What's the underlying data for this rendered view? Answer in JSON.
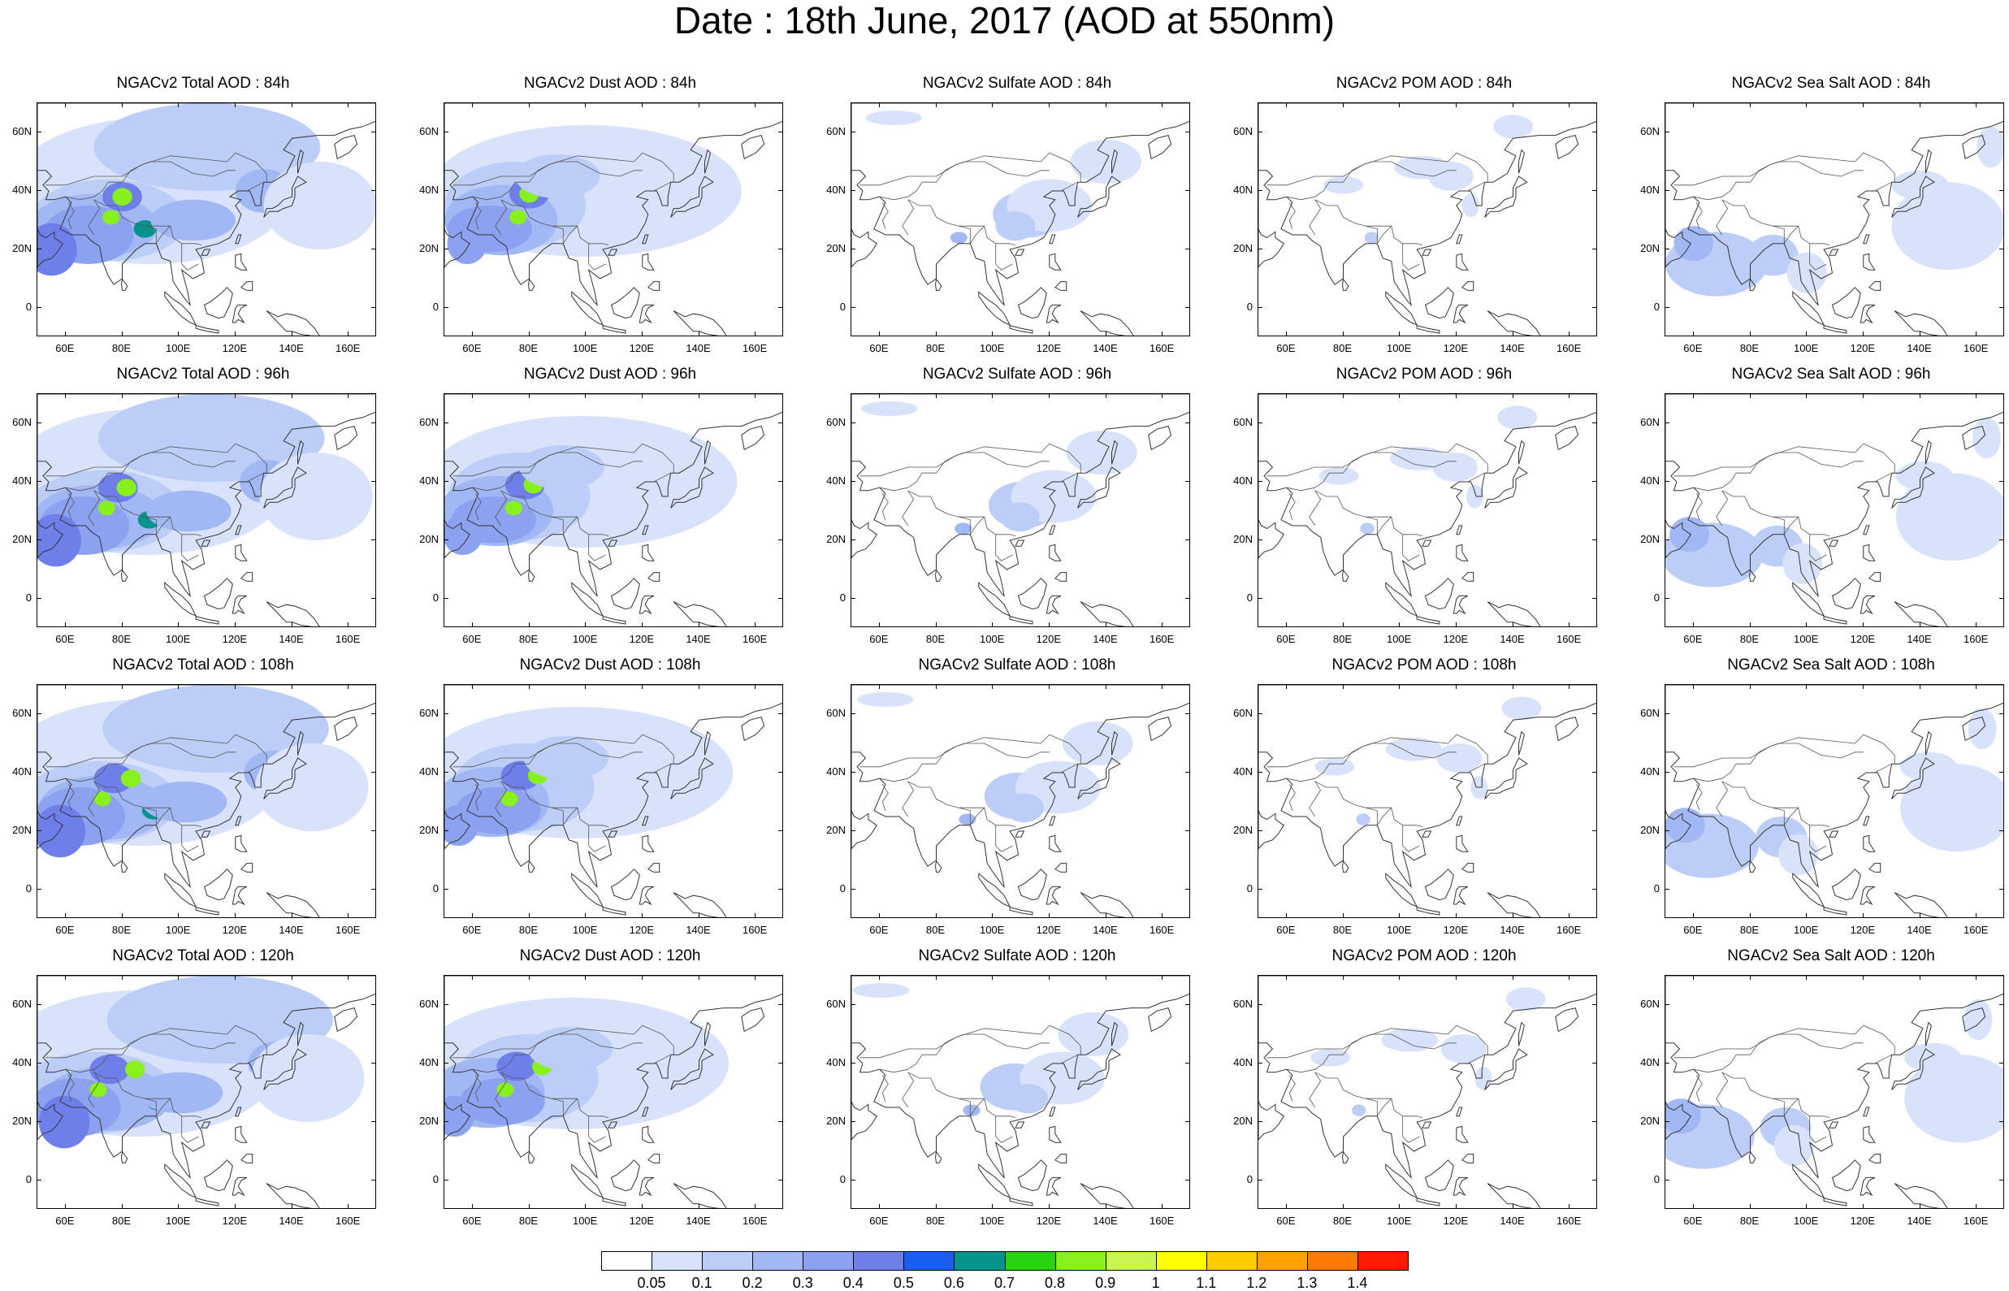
{
  "title": "Date : 18th June, 2017 (AOD at 550nm)",
  "panels": [
    {
      "title": "NGACv2 Total AOD : 84h",
      "kind": "total"
    },
    {
      "title": "NGACv2 Dust AOD : 84h",
      "kind": "dust"
    },
    {
      "title": "NGACv2 Sulfate AOD : 84h",
      "kind": "sulfate"
    },
    {
      "title": "NGACv2 POM AOD : 84h",
      "kind": "pom"
    },
    {
      "title": "NGACv2 Sea Salt AOD : 84h",
      "kind": "seasalt"
    },
    {
      "title": "NGACv2 Total AOD : 96h",
      "kind": "total"
    },
    {
      "title": "NGACv2 Dust AOD : 96h",
      "kind": "dust"
    },
    {
      "title": "NGACv2 Sulfate AOD : 96h",
      "kind": "sulfate"
    },
    {
      "title": "NGACv2 POM AOD : 96h",
      "kind": "pom"
    },
    {
      "title": "NGACv2 Sea Salt AOD : 96h",
      "kind": "seasalt"
    },
    {
      "title": "NGACv2 Total AOD : 108h",
      "kind": "total"
    },
    {
      "title": "NGACv2 Dust AOD : 108h",
      "kind": "dust"
    },
    {
      "title": "NGACv2 Sulfate AOD : 108h",
      "kind": "sulfate"
    },
    {
      "title": "NGACv2 POM AOD : 108h",
      "kind": "pom"
    },
    {
      "title": "NGACv2 Sea Salt AOD : 108h",
      "kind": "seasalt"
    },
    {
      "title": "NGACv2 Total AOD : 120h",
      "kind": "total"
    },
    {
      "title": "NGACv2 Dust AOD : 120h",
      "kind": "dust"
    },
    {
      "title": "NGACv2 Sulfate AOD : 120h",
      "kind": "sulfate"
    },
    {
      "title": "NGACv2 POM AOD : 120h",
      "kind": "pom"
    },
    {
      "title": "NGACv2 Sea Salt  AOD : 120h",
      "kind": "seasalt"
    }
  ],
  "lat_ticks": [
    "60N",
    "40N",
    "20N",
    "0"
  ],
  "lat_values": [
    60,
    40,
    20,
    0
  ],
  "lon_ticks": [
    "60E",
    "80E",
    "100E",
    "120E",
    "140E",
    "160E"
  ],
  "lon_values": [
    60,
    80,
    100,
    120,
    140,
    160
  ],
  "extent": {
    "lon_min": 50,
    "lon_max": 170,
    "lat_min": -10,
    "lat_max": 70
  },
  "colorbar": {
    "labels": [
      "0.05",
      "0.1",
      "0.2",
      "0.3",
      "0.4",
      "0.5",
      "0.6",
      "0.7",
      "0.8",
      "0.9",
      "1",
      "1.1",
      "1.2",
      "1.3",
      "1.4"
    ],
    "colors": [
      "#ffffff",
      "#d8e3fb",
      "#bccdf8",
      "#a2b8f5",
      "#8ca2f1",
      "#6f7fea",
      "#1a5ef0",
      "#05948c",
      "#27d30f",
      "#88f01c",
      "#c8f550",
      "#ffff00",
      "#ffcc00",
      "#ffa100",
      "#ff7a00",
      "#ff1a00"
    ]
  }
}
